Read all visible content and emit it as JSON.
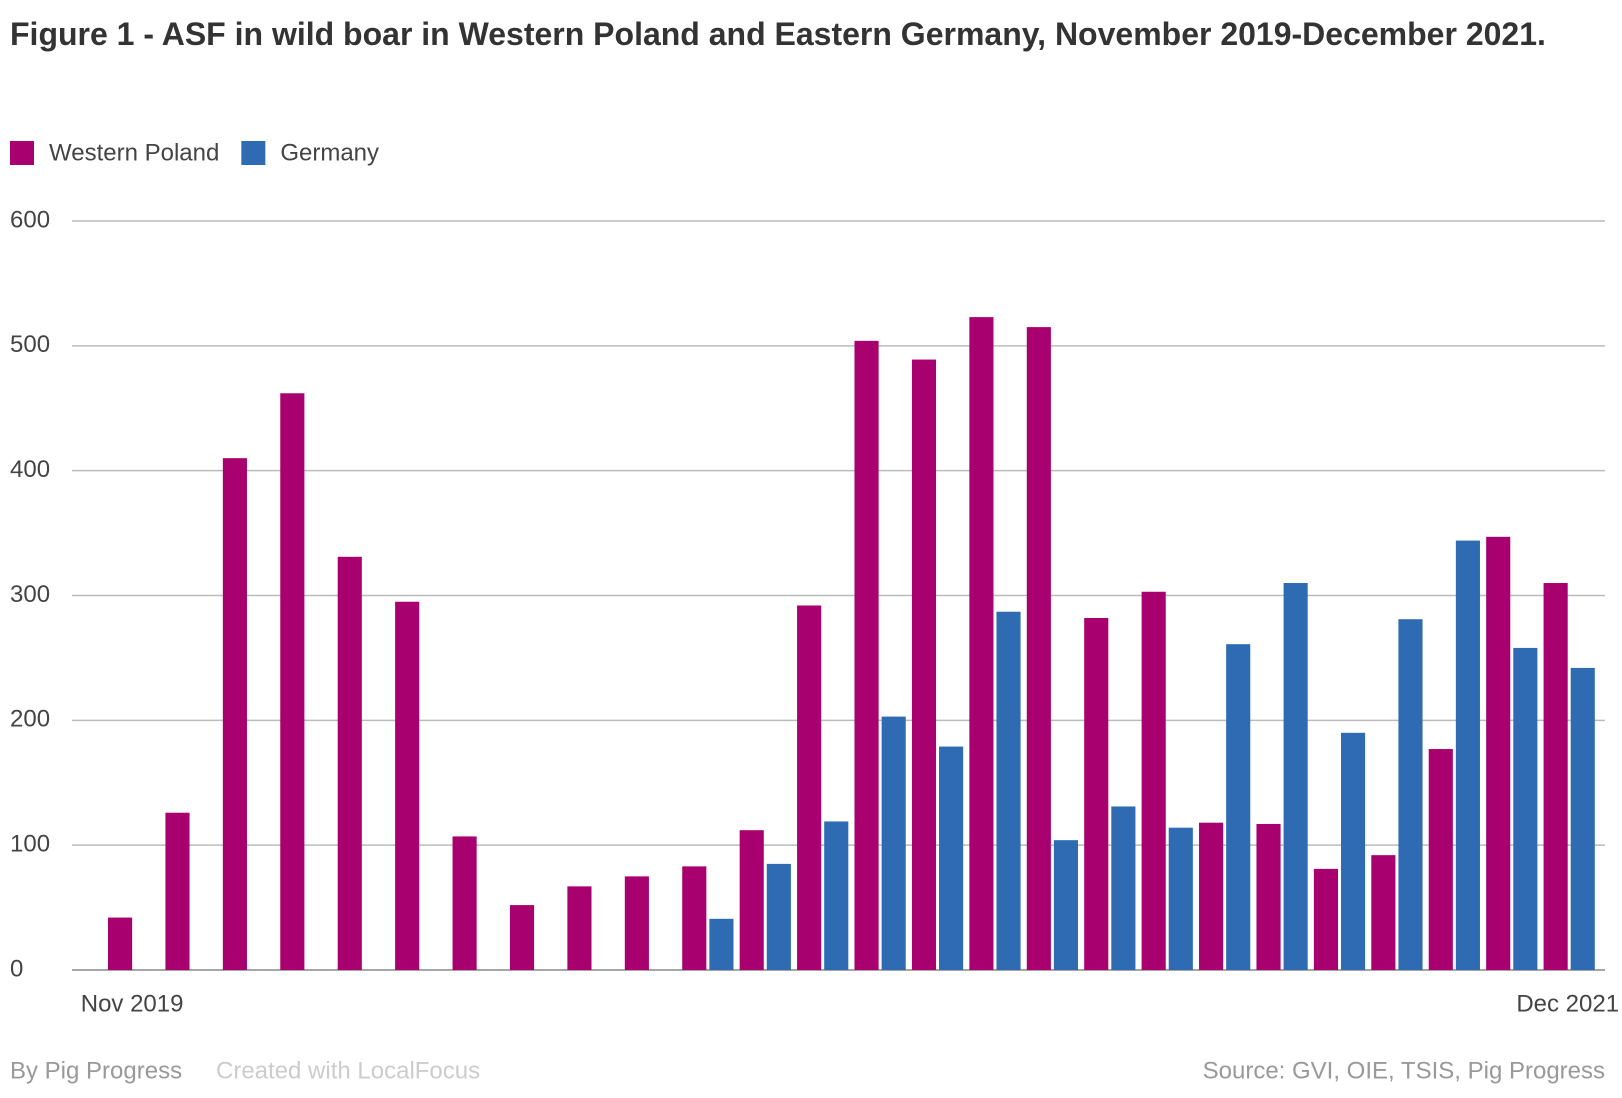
{
  "chart_data": {
    "type": "bar",
    "title": "Figure 1 - ASF in wild boar in Western Poland and Eastern Germany, November 2019-December 2021.",
    "categories": [
      "Nov 2019",
      null,
      null,
      null,
      null,
      null,
      null,
      null,
      null,
      null,
      null,
      null,
      null,
      null,
      null,
      null,
      null,
      null,
      null,
      null,
      null,
      null,
      null,
      null,
      null,
      "Dec 2021"
    ],
    "series": [
      {
        "name": "Western Poland",
        "color": "#a8006e",
        "values": [
          42,
          126,
          410,
          462,
          331,
          295,
          107,
          52,
          67,
          75,
          83,
          112,
          292,
          504,
          489,
          523,
          515,
          282,
          303,
          118,
          117,
          81,
          92,
          177,
          347,
          310
        ]
      },
      {
        "name": "Germany",
        "color": "#2e6bb3",
        "values": [
          null,
          null,
          null,
          null,
          null,
          null,
          null,
          null,
          null,
          null,
          41,
          85,
          119,
          203,
          179,
          287,
          104,
          131,
          114,
          261,
          310,
          190,
          281,
          344,
          258,
          242
        ]
      }
    ],
    "ylim": [
      0,
      600
    ],
    "yticks": [
      0,
      100,
      200,
      300,
      400,
      500,
      600
    ],
    "grid": true,
    "byline": "By Pig Progress",
    "credit": "Created with LocalFocus",
    "source": "Source:  GVI, OIE, TSIS, Pig Progress"
  }
}
